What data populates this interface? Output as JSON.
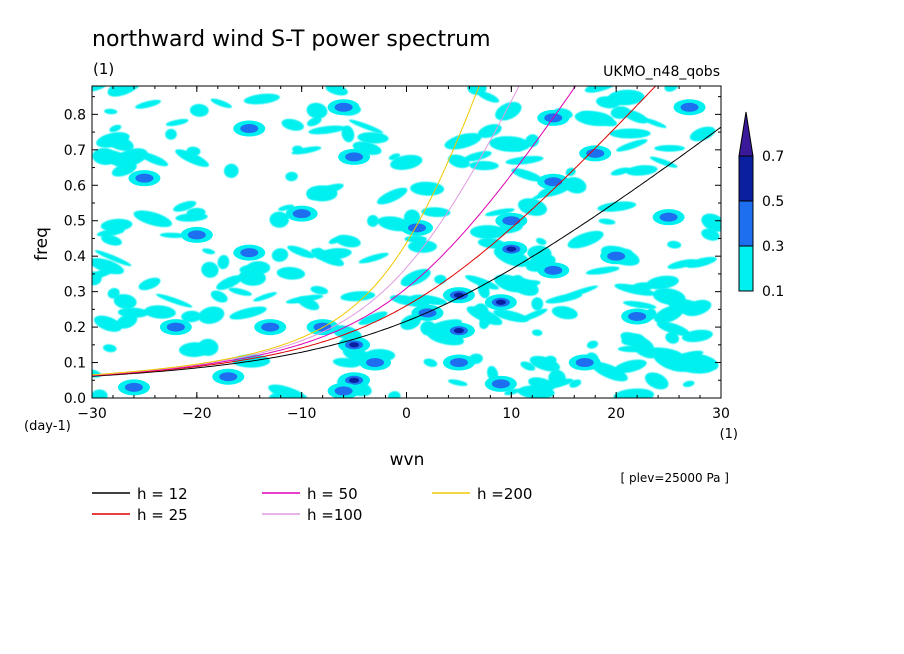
{
  "chart_data": {
    "type": "contour",
    "title": "northward wind S-T power spectrum",
    "subtitle_left": "(1)",
    "subtitle_right": "UKMO_n48_qobs",
    "xlabel": "wvn",
    "ylabel": "freq",
    "x_unit": "(1)",
    "y_unit": "(day-1)",
    "xlim": [
      -30,
      30
    ],
    "ylim": [
      0,
      0.88
    ],
    "x_ticks": [
      -30,
      -20,
      -10,
      0,
      10,
      20,
      30
    ],
    "x_tick_labels": [
      "−30",
      "−20",
      "−10",
      "0",
      "10",
      "20",
      "30"
    ],
    "y_ticks": [
      0,
      0.1,
      0.2,
      0.3,
      0.4,
      0.5,
      0.6,
      0.7,
      0.8
    ],
    "y_tick_labels": [
      "0.0",
      "0.1",
      "0.2",
      "0.3",
      "0.4",
      "0.5",
      "0.6",
      "0.7",
      "0.8"
    ],
    "note": "[ plev=25000 Pa ]",
    "colorbar": {
      "levels": [
        "0.1",
        "0.3",
        "0.5",
        "0.7"
      ],
      "colors": [
        "#00f0f0",
        "#1e6ef0",
        "#0a1ea0",
        "#3a1a9a"
      ]
    },
    "series": [
      {
        "name": "h = 12",
        "color": "#000000",
        "h": 12
      },
      {
        "name": "h = 25",
        "color": "#e00000",
        "h": 25
      },
      {
        "name": "h = 50",
        "color": "#e000b4",
        "h": 50
      },
      {
        "name": "h =100",
        "color": "#e09be0",
        "h": 100
      },
      {
        "name": "h =200",
        "color": "#f0c800",
        "h": 200
      }
    ],
    "power_peaks": [
      {
        "x": -5,
        "y": 0.15,
        "v": 0.5
      },
      {
        "x": -5,
        "y": 0.05,
        "v": 0.5
      },
      {
        "x": -6,
        "y": 0.02,
        "v": 0.3
      },
      {
        "x": -3,
        "y": 0.1,
        "v": 0.3
      },
      {
        "x": -8,
        "y": 0.2,
        "v": 0.3
      },
      {
        "x": 5,
        "y": 0.29,
        "v": 0.5
      },
      {
        "x": 5,
        "y": 0.19,
        "v": 0.5
      },
      {
        "x": 9,
        "y": 0.27,
        "v": 0.5
      },
      {
        "x": 10,
        "y": 0.42,
        "v": 0.5
      },
      {
        "x": 10,
        "y": 0.5,
        "v": 0.3
      },
      {
        "x": 14,
        "y": 0.36,
        "v": 0.3
      },
      {
        "x": 18,
        "y": 0.69,
        "v": 0.3
      },
      {
        "x": 14,
        "y": 0.61,
        "v": 0.3
      },
      {
        "x": 1,
        "y": 0.48,
        "v": 0.3
      },
      {
        "x": 5,
        "y": 0.1,
        "v": 0.3
      },
      {
        "x": 9,
        "y": 0.04,
        "v": 0.3
      },
      {
        "x": -17,
        "y": 0.06,
        "v": 0.3
      },
      {
        "x": -26,
        "y": 0.03,
        "v": 0.3
      },
      {
        "x": -15,
        "y": 0.76,
        "v": 0.3
      },
      {
        "x": -25,
        "y": 0.62,
        "v": 0.3
      },
      {
        "x": -5,
        "y": 0.68,
        "v": 0.3
      },
      {
        "x": -20,
        "y": 0.46,
        "v": 0.3
      },
      {
        "x": -15,
        "y": 0.41,
        "v": 0.3
      },
      {
        "x": -6,
        "y": 0.82,
        "v": 0.3
      },
      {
        "x": 14,
        "y": 0.79,
        "v": 0.3
      },
      {
        "x": 25,
        "y": 0.51,
        "v": 0.3
      },
      {
        "x": 22,
        "y": 0.23,
        "v": 0.3
      },
      {
        "x": 17,
        "y": 0.1,
        "v": 0.3
      },
      {
        "x": 27,
        "y": 0.82,
        "v": 0.3
      },
      {
        "x": -13,
        "y": 0.2,
        "v": 0.3
      },
      {
        "x": 2,
        "y": 0.24,
        "v": 0.3
      },
      {
        "x": -22,
        "y": 0.2,
        "v": 0.3
      },
      {
        "x": 20,
        "y": 0.4,
        "v": 0.3
      },
      {
        "x": -10,
        "y": 0.52,
        "v": 0.3
      }
    ]
  }
}
